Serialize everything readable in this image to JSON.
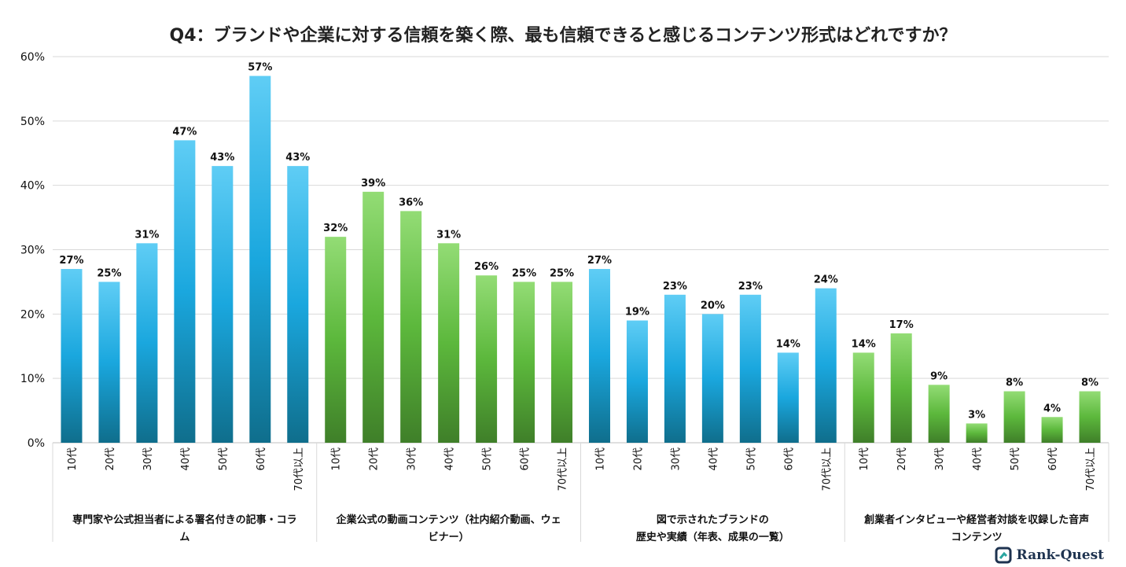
{
  "chart_data": {
    "type": "bar",
    "title": "Q4：ブランドや企業に対する信頼を築く際、最も信頼できると感じるコンテンツ形式はどれですか？",
    "ylim": [
      0,
      60
    ],
    "yticks": [
      0,
      10,
      20,
      30,
      40,
      50,
      60
    ],
    "ytick_labels": [
      "0%",
      "10%",
      "20%",
      "30%",
      "40%",
      "50%",
      "60%"
    ],
    "grid": true,
    "categories": [
      "10代",
      "20代",
      "30代",
      "40代",
      "50代",
      "60代",
      "70代以上"
    ],
    "groups": [
      {
        "name": "専門家や公式担当者による署名付きの記事・コラム",
        "label_lines": [
          "専門家や公式担当者による署名付きの記事・コラ",
          "ム"
        ],
        "color": "blue",
        "values": [
          27,
          25,
          31,
          47,
          43,
          57,
          43
        ],
        "value_labels": [
          "27%",
          "25%",
          "31%",
          "47%",
          "43%",
          "57%",
          "43%"
        ]
      },
      {
        "name": "企業公式の動画コンテンツ（社内紹介動画、ウェビナー）",
        "label_lines": [
          "企業公式の動画コンテンツ（社内紹介動画、ウェ",
          "ビナー）"
        ],
        "color": "green",
        "values": [
          32,
          39,
          36,
          31,
          26,
          25,
          25
        ],
        "value_labels": [
          "32%",
          "39%",
          "36%",
          "31%",
          "26%",
          "25%",
          "25%"
        ]
      },
      {
        "name": "図で示されたブランドの歴史や実績（年表、成果の一覧）",
        "label_lines": [
          "図で示されたブランドの",
          "歴史や実績（年表、成果の一覧）"
        ],
        "color": "blue",
        "values": [
          27,
          19,
          23,
          20,
          23,
          14,
          24
        ],
        "value_labels": [
          "27%",
          "19%",
          "23%",
          "20%",
          "23%",
          "14%",
          "24%"
        ]
      },
      {
        "name": "創業者インタビューや経営者対談を収録した音声コンテンツ",
        "label_lines": [
          "創業者インタビューや経営者対談を収録した音声",
          "コンテンツ"
        ],
        "color": "green",
        "values": [
          14,
          17,
          9,
          3,
          8,
          4,
          8
        ],
        "value_labels": [
          "14%",
          "17%",
          "9%",
          "3%",
          "8%",
          "4%",
          "8%"
        ]
      }
    ],
    "colors": {
      "blue_top": "#5fcdf5",
      "blue_mid": "#1aa7de",
      "blue_bottom": "#0f6e8c",
      "green_top": "#93dc75",
      "green_mid": "#5cb83c",
      "green_bottom": "#3f7f29"
    }
  },
  "brand": {
    "name": "Rank-Quest",
    "logo_icon": "rank-quest-logo-icon"
  }
}
